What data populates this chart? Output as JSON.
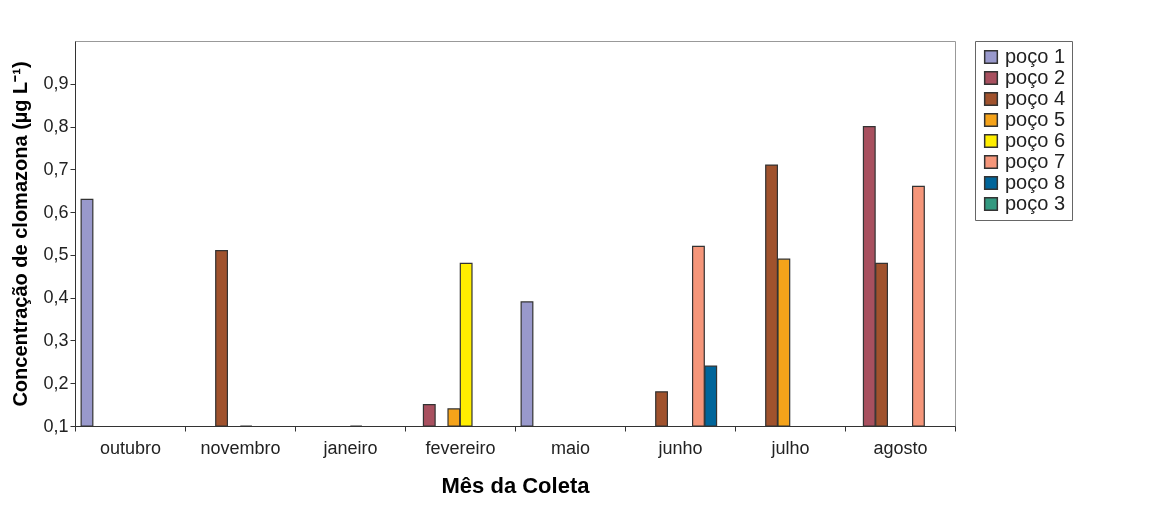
{
  "chart_data": {
    "type": "bar",
    "xlabel": "Mês da Coleta",
    "ylabel": "Concentração de clomazona (µg L⁻¹)",
    "categories": [
      "outubro",
      "novembro",
      "janeiro",
      "fevereiro",
      "maio",
      "junho",
      "julho",
      "agosto"
    ],
    "series": [
      {
        "name": "poço 1",
        "color": "#9999cc",
        "values": [
          0.63,
          null,
          null,
          null,
          0.39,
          null,
          null,
          null
        ]
      },
      {
        "name": "poço 2",
        "color": "#a8505f",
        "values": [
          null,
          null,
          null,
          0.15,
          null,
          null,
          null,
          0.8
        ]
      },
      {
        "name": "poço 4",
        "color": "#a0522d",
        "values": [
          null,
          0.51,
          null,
          null,
          null,
          0.18,
          0.71,
          0.48
        ]
      },
      {
        "name": "poço 5",
        "color": "#f5a31a",
        "values": [
          null,
          null,
          null,
          0.14,
          null,
          null,
          0.49,
          null
        ]
      },
      {
        "name": "poço 6",
        "color": "#ffee00",
        "values": [
          null,
          0.1,
          0.1,
          0.48,
          null,
          null,
          null,
          null
        ]
      },
      {
        "name": "poço 7",
        "color": "#f5967a",
        "values": [
          null,
          null,
          null,
          null,
          null,
          0.52,
          null,
          0.66
        ]
      },
      {
        "name": "poço 8",
        "color": "#00659a",
        "values": [
          null,
          null,
          null,
          null,
          null,
          0.24,
          null,
          null
        ]
      },
      {
        "name": "poço 3",
        "color": "#339980",
        "values": [
          null,
          null,
          null,
          null,
          null,
          null,
          null,
          null
        ]
      }
    ],
    "ylim": [
      0.1,
      1.0
    ],
    "yticks": [
      {
        "value": 0.1,
        "label": "0,1"
      },
      {
        "value": 0.2,
        "label": "0,2"
      },
      {
        "value": 0.3,
        "label": "0,3"
      },
      {
        "value": 0.4,
        "label": "0,4"
      },
      {
        "value": 0.5,
        "label": "0,5"
      },
      {
        "value": 0.6,
        "label": "0,6"
      },
      {
        "value": 0.7,
        "label": "0,7"
      },
      {
        "value": 0.8,
        "label": "0,8"
      },
      {
        "value": 0.9,
        "label": "0,9"
      }
    ],
    "grid": false,
    "legend": "right"
  }
}
